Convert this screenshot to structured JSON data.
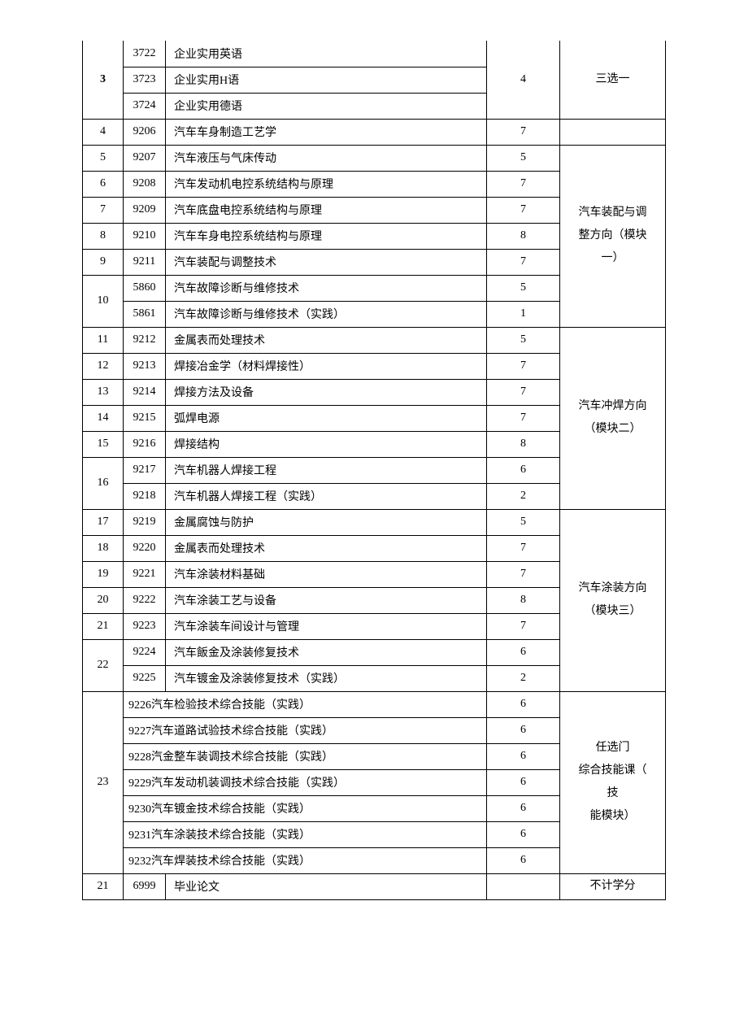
{
  "columns": {
    "idx_width": 50,
    "code_width": 52,
    "name_width": 395,
    "cred_width": 90,
    "note_width": 130
  },
  "r3": {
    "idx": "3",
    "rows": [
      {
        "code": "3722",
        "name": "企业实用英语"
      },
      {
        "code": "3723",
        "name": "企业实用H语"
      },
      {
        "code": "3724",
        "name": "企业实用德语"
      }
    ],
    "credit": "4",
    "note": "三选一"
  },
  "r4": {
    "idx": "4",
    "code": "9206",
    "name": "汽车车身制造工艺学",
    "credit": "7",
    "note": ""
  },
  "g_mod1": {
    "note": "汽车装配与调\n整方向（模块\n一）",
    "rows": [
      {
        "idx": "5",
        "code": "9207",
        "name": "汽车液压与气床传动",
        "credit": "5"
      },
      {
        "idx": "6",
        "code": "9208",
        "name": "汽车发动机电控系统结构与原理",
        "credit": "7"
      },
      {
        "idx": "7",
        "code": "9209",
        "name": "汽车底盘电控系统结构与原理",
        "credit": "7"
      },
      {
        "idx": "8",
        "code": "9210",
        "name": "汽车车身电控系统结构与原理",
        "credit": "8"
      },
      {
        "idx": "9",
        "code": "9211",
        "name": "汽车装配与调整技术",
        "credit": "7"
      }
    ],
    "r10": {
      "idx": "10",
      "a": {
        "code": "5860",
        "name": "汽车故障诊断与维修技术",
        "credit": "5"
      },
      "b": {
        "code": "5861",
        "name": "汽车故障诊断与维修技术（实践）",
        "credit": "1"
      }
    }
  },
  "g_mod2": {
    "note": "汽车冲焊方向\n（模块二）",
    "rows": [
      {
        "idx": "11",
        "code": "9212",
        "name": "金属表而处理技术",
        "credit": "5"
      },
      {
        "idx": "12",
        "code": "9213",
        "name": "焊接冶金学（材料焊接性）",
        "credit": "7"
      },
      {
        "idx": "13",
        "code": "9214",
        "name": "焊接方法及设备",
        "credit": "7"
      },
      {
        "idx": "14",
        "code": "9215",
        "name": "弧焊电源",
        "credit": "7"
      },
      {
        "idx": "15",
        "code": "9216",
        "name": "焊接结构",
        "credit": "8"
      }
    ],
    "r16": {
      "idx": "16",
      "a": {
        "code": "9217",
        "name": "汽车机器人焊接工程",
        "credit": "6"
      },
      "b": {
        "code": "9218",
        "name": "汽车机器人焊接工程（实践）",
        "credit": "2"
      }
    }
  },
  "g_mod3": {
    "note": "汽车涂装方向\n（模块三）",
    "rows": [
      {
        "idx": "17",
        "code": "9219",
        "name": "金属腐蚀与防护",
        "credit": "5"
      },
      {
        "idx": "18",
        "code": "9220",
        "name": "金属表而处理技术",
        "credit": "7"
      },
      {
        "idx": "19",
        "code": "9221",
        "name": "汽车涂装材料基础",
        "credit": "7"
      },
      {
        "idx": "20",
        "code": "9222",
        "name": "汽车涂装工艺与设备",
        "credit": "8"
      },
      {
        "idx": "21",
        "code": "9223",
        "name": "汽车涂装车间设计与管理",
        "credit": "7"
      }
    ],
    "r22": {
      "idx": "22",
      "a": {
        "code": "9224",
        "name": "汽车飯金及涂装修复技术",
        "credit": "6"
      },
      "b": {
        "code": "9225",
        "name": "汽车镀金及涂装修复技术（实践）",
        "credit": "2"
      }
    }
  },
  "r23": {
    "idx": "23",
    "note": "任选门\n综合技能课（\n技\n能模块）",
    "rows": [
      {
        "name": "9226汽车检验技术综合技能（实践）",
        "credit": "6"
      },
      {
        "name": "9227汽车道路试验技术综合技能（实践）",
        "credit": "6"
      },
      {
        "name": "9228汽金整车装调技术综合技能（实践）",
        "credit": "6"
      },
      {
        "name": "9229汽车发动机装调技术综合技能（实践）",
        "credit": "6"
      },
      {
        "name": "9230汽车镀金技术综合技能（实践）",
        "credit": "6"
      },
      {
        "name": "9231汽车涂装技术综合技能（实践）",
        "credit": "6"
      },
      {
        "name": "9232汽车焊装技术综合技能（实践）",
        "credit": "6"
      }
    ]
  },
  "r21b": {
    "idx": "21",
    "code": "6999",
    "name": "毕业论文",
    "credit": "",
    "note": "不计学分"
  }
}
